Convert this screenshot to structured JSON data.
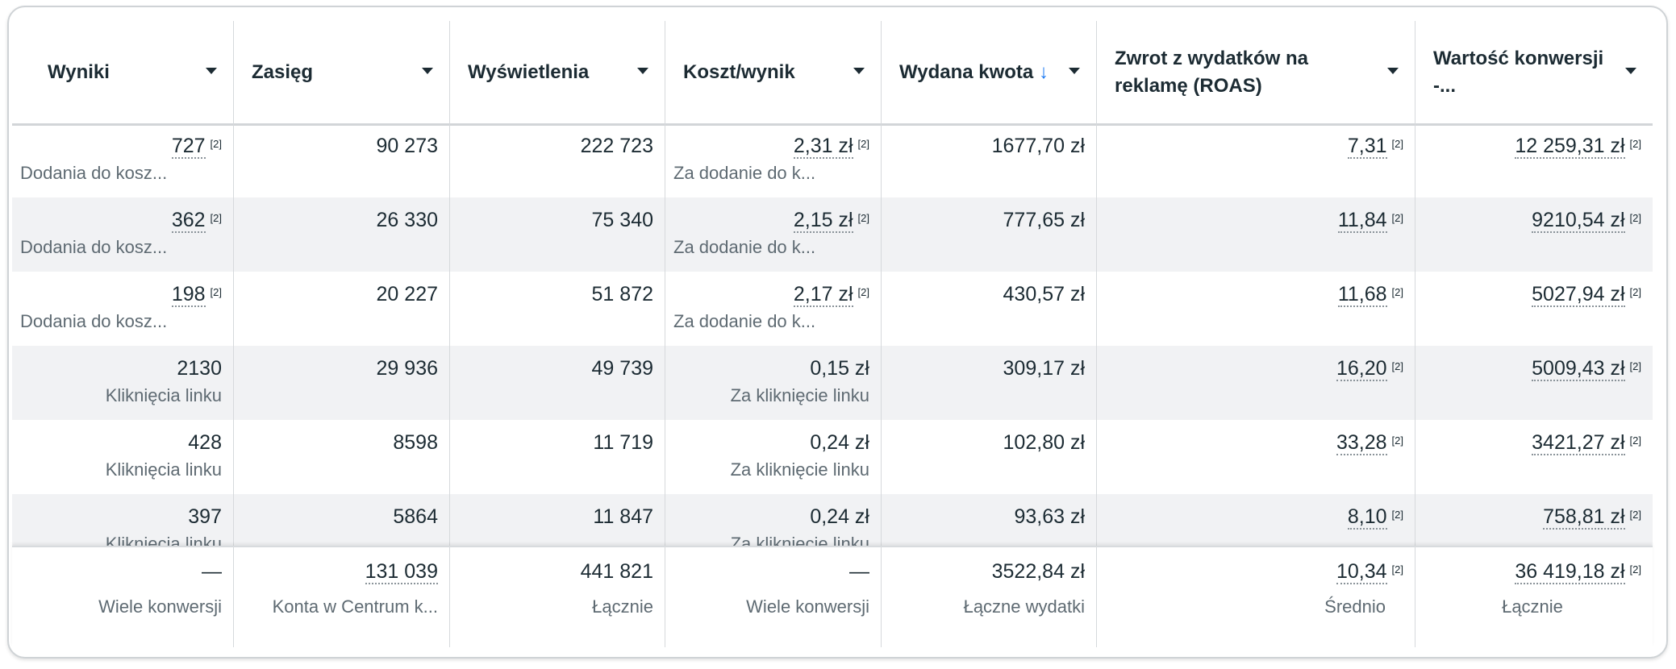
{
  "columns": [
    {
      "label": "Wyniki"
    },
    {
      "label": "Zasięg"
    },
    {
      "label": "Wyświetlenia"
    },
    {
      "label": "Koszt/wynik"
    },
    {
      "label": "Wydana kwota",
      "sort_icon": "arrow-down-icon",
      "sort_glyph": "↓"
    },
    {
      "label": "Zwrot z wydatków na reklamę (ROAS)"
    },
    {
      "label": "Wartość konwersji -..."
    }
  ],
  "sup": "[2]",
  "rows": [
    {
      "results": "727",
      "results_label": "Dodania do kosz...",
      "reach": "90 273",
      "impressions": "222 723",
      "cpr": "2,31 zł",
      "cpr_label": "Za dodanie do k...",
      "spent": "1677,70 zł",
      "roas": "7,31",
      "conv": "12 259,31 zł"
    },
    {
      "results": "362",
      "results_label": "Dodania do kosz...",
      "reach": "26 330",
      "impressions": "75 340",
      "cpr": "2,15 zł",
      "cpr_label": "Za dodanie do k...",
      "spent": "777,65 zł",
      "roas": "11,84",
      "conv": "9210,54 zł"
    },
    {
      "results": "198",
      "results_label": "Dodania do kosz...",
      "reach": "20 227",
      "impressions": "51 872",
      "cpr": "2,17 zł",
      "cpr_label": "Za dodanie do k...",
      "spent": "430,57 zł",
      "roas": "11,68",
      "conv": "5027,94 zł"
    },
    {
      "results": "2130",
      "results_label": "Kliknięcia linku",
      "reach": "29 936",
      "impressions": "49 739",
      "cpr": "0,15 zł",
      "cpr_label": "Za kliknięcie linku",
      "spent": "309,17 zł",
      "roas": "16,20",
      "conv": "5009,43 zł"
    },
    {
      "results": "428",
      "results_label": "Kliknięcia linku",
      "reach": "8598",
      "impressions": "11 719",
      "cpr": "0,24 zł",
      "cpr_label": "Za kliknięcie linku",
      "spent": "102,80 zł",
      "roas": "33,28",
      "conv": "3421,27 zł"
    },
    {
      "results": "397",
      "results_label": "Kliknięcia linku",
      "reach": "5864",
      "impressions": "11 847",
      "cpr": "0,24 zł",
      "cpr_label": "Za kliknięcie linku",
      "spent": "93,63 zł",
      "roas": "8,10",
      "conv": "758,81 zł"
    }
  ],
  "totals": {
    "results": "—",
    "results_label": "Wiele konwersji",
    "reach": "131 039",
    "reach_label": "Konta w Centrum k...",
    "impressions": "441 821",
    "impressions_label": "Łącznie",
    "cpr": "—",
    "cpr_label": "Wiele konwersji",
    "spent": "3522,84 zł",
    "spent_label": "Łączne wydatki",
    "roas": "10,34",
    "roas_label": "Średnio",
    "conv": "36 419,18 zł",
    "conv_label": "Łącznie"
  }
}
